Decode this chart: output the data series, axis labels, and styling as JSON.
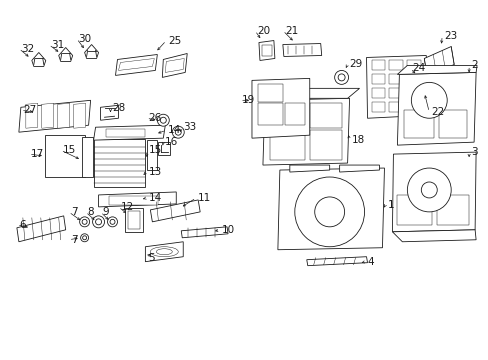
{
  "bg_color": "#ffffff",
  "line_color": "#1a1a1a",
  "fig_width": 4.89,
  "fig_height": 3.6,
  "dpi": 100,
  "font_size": 7.5,
  "lw": 0.6
}
